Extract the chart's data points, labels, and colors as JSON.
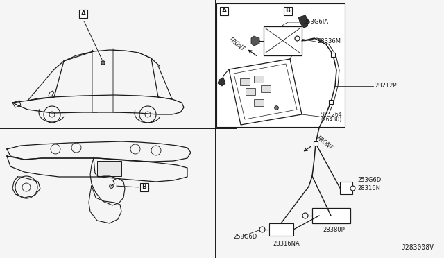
{
  "bg_color": "#f5f5f5",
  "line_color": "#1a1a1a",
  "text_color": "#1a1a1a",
  "fig_width": 6.4,
  "fig_height": 3.72,
  "part_number": "J283008V",
  "labels": {
    "28336M": "28336M",
    "sec264": "SEC.264\n(26430)",
    "253G6IA": "253G6IA",
    "28212P": "28212P",
    "253G6D_r": "253G6D",
    "28316N": "28316N",
    "28380P": "28380P",
    "253G6D_b": "253G6D",
    "28316NA": "28316NA"
  }
}
